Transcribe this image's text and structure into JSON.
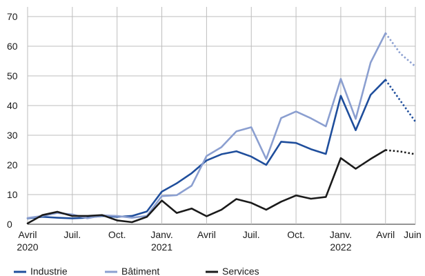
{
  "chart_data": {
    "type": "line",
    "x": [
      "2020-04",
      "2020-05",
      "2020-06",
      "2020-07",
      "2020-08",
      "2020-09",
      "2020-10",
      "2020-11",
      "2020-12",
      "2021-01",
      "2021-02",
      "2021-03",
      "2021-04",
      "2021-05",
      "2021-06",
      "2021-07",
      "2021-08",
      "2021-09",
      "2021-10",
      "2021-11",
      "2021-12",
      "2022-01",
      "2022-02",
      "2022-03",
      "2022-04",
      "2022-05",
      "2022-06"
    ],
    "x_ticks": [
      {
        "x": "2020-04",
        "line1": "Avril",
        "line2": "2020"
      },
      {
        "x": "2020-07",
        "line1": "Juil.",
        "line2": ""
      },
      {
        "x": "2020-10",
        "line1": "Oct.",
        "line2": ""
      },
      {
        "x": "2021-01",
        "line1": "Janv.",
        "line2": "2021"
      },
      {
        "x": "2021-04",
        "line1": "Avril",
        "line2": ""
      },
      {
        "x": "2021-07",
        "line1": "Juil.",
        "line2": ""
      },
      {
        "x": "2021-10",
        "line1": "Oct.",
        "line2": ""
      },
      {
        "x": "2022-01",
        "line1": "Janv.",
        "line2": "2022"
      },
      {
        "x": "2022-04",
        "line1": "Avril",
        "line2": ""
      },
      {
        "x": "2022-06",
        "line1": "Juin",
        "line2": ""
      }
    ],
    "y_ticks": [
      0,
      10,
      20,
      30,
      40,
      50,
      60,
      70
    ],
    "ylim": [
      0,
      70
    ],
    "grid": true,
    "legend_position": "bottom",
    "projected_from": "2022-05",
    "series": [
      {
        "name": "Industrie",
        "color": "#1f4e9c",
        "values": [
          2.0,
          2.5,
          2.2,
          2.0,
          2.2,
          2.8,
          2.5,
          2.8,
          4.3,
          11.0,
          13.8,
          17.2,
          21.5,
          23.6,
          24.6,
          22.8,
          20.0,
          27.8,
          27.4,
          25.3,
          23.7,
          43.3,
          31.7,
          43.6,
          48.7,
          41.6,
          34.6
        ]
      },
      {
        "name": "Bâtiment",
        "color": "#8b9fd0",
        "values": [
          2.1,
          2.8,
          3.8,
          3.3,
          2.0,
          3.0,
          2.8,
          2.2,
          2.8,
          9.5,
          9.8,
          13.0,
          23.0,
          26.0,
          31.3,
          32.7,
          22.0,
          35.8,
          38.0,
          35.7,
          33.0,
          49.0,
          35.5,
          54.5,
          64.4,
          57.5,
          53.2
        ]
      },
      {
        "name": "Services",
        "color": "#1a1a1a",
        "values": [
          0.3,
          3.1,
          4.2,
          2.8,
          2.8,
          3.1,
          1.3,
          0.7,
          2.5,
          8.0,
          3.8,
          5.3,
          2.7,
          4.9,
          8.5,
          7.2,
          4.9,
          7.6,
          9.7,
          8.6,
          9.2,
          22.3,
          18.7,
          22.0,
          25.0,
          24.5,
          23.6
        ]
      }
    ]
  }
}
